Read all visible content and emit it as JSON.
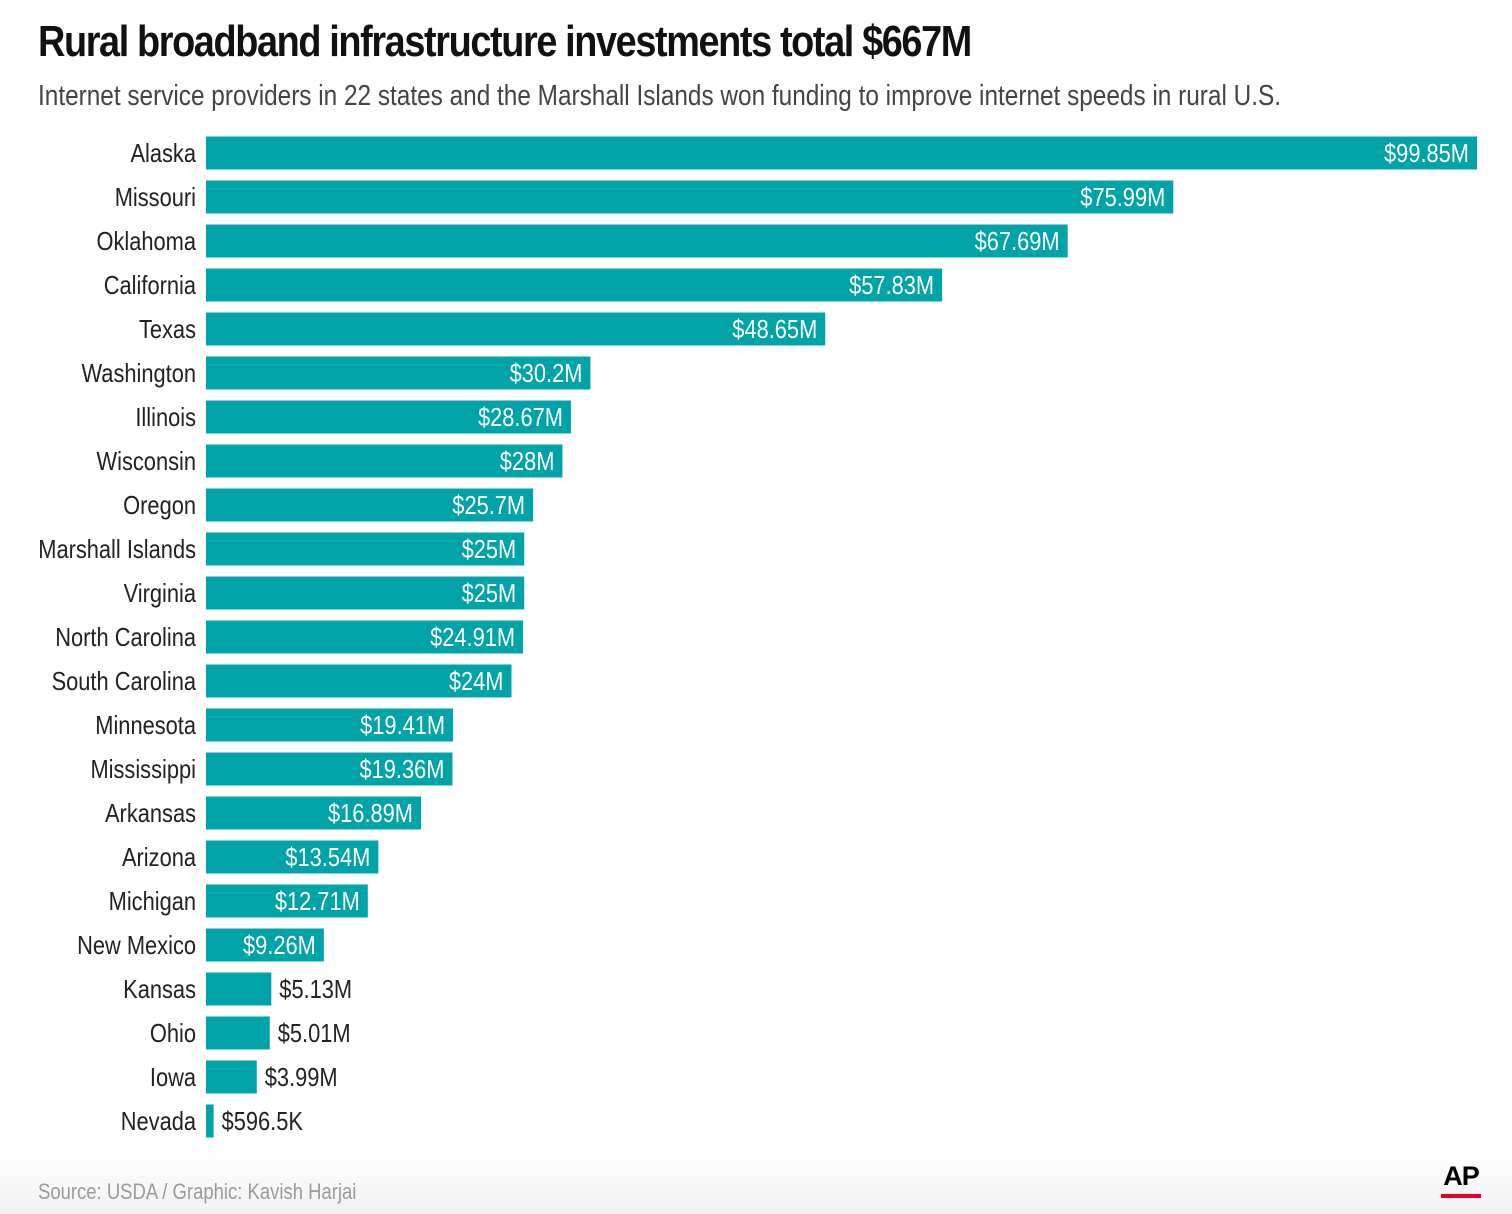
{
  "title": "Rural broadband infrastructure investments total $667M",
  "subtitle": "Internet service providers in 22 states and the Marshall Islands won funding to improve internet speeds in rural U.S.",
  "source": "Source: USDA / Graphic: Kavish Harjai",
  "logo": "AP",
  "colors": {
    "bar": "#00a3a7",
    "label_inside": "#ffffff",
    "label_outside": "#222222",
    "category_text": "#222222",
    "logo_accent": "#e4002b"
  },
  "chart_data": {
    "type": "bar",
    "orientation": "horizontal",
    "title": "Rural broadband infrastructure investments total $667M",
    "xlabel": "",
    "ylabel": "",
    "unit": "USD millions",
    "xlim": [
      0,
      99.85
    ],
    "grid": false,
    "categories": [
      "Alaska",
      "Missouri",
      "Oklahoma",
      "California",
      "Texas",
      "Washington",
      "Illinois",
      "Wisconsin",
      "Oregon",
      "Marshall Islands",
      "Virginia",
      "North Carolina",
      "South Carolina",
      "Minnesota",
      "Mississippi",
      "Arkansas",
      "Arizona",
      "Michigan",
      "New Mexico",
      "Kansas",
      "Ohio",
      "Iowa",
      "Nevada"
    ],
    "values": [
      99.85,
      75.99,
      67.69,
      57.83,
      48.65,
      30.2,
      28.67,
      28,
      25.7,
      25,
      25,
      24.91,
      24,
      19.41,
      19.36,
      16.89,
      13.54,
      12.71,
      9.26,
      5.13,
      5.01,
      3.99,
      0.5965
    ],
    "value_labels": [
      "$99.85M",
      "$75.99M",
      "$67.69M",
      "$57.83M",
      "$48.65M",
      "$30.2M",
      "$28.67M",
      "$28M",
      "$25.7M",
      "$25M",
      "$25M",
      "$24.91M",
      "$24M",
      "$19.41M",
      "$19.36M",
      "$16.89M",
      "$13.54M",
      "$12.71M",
      "$9.26M",
      "$5.13M",
      "$5.01M",
      "$3.99M",
      "$596.5K"
    ],
    "labels_inside": [
      true,
      true,
      true,
      true,
      true,
      true,
      true,
      true,
      true,
      true,
      true,
      true,
      true,
      true,
      true,
      true,
      true,
      true,
      true,
      false,
      false,
      false,
      false
    ]
  }
}
